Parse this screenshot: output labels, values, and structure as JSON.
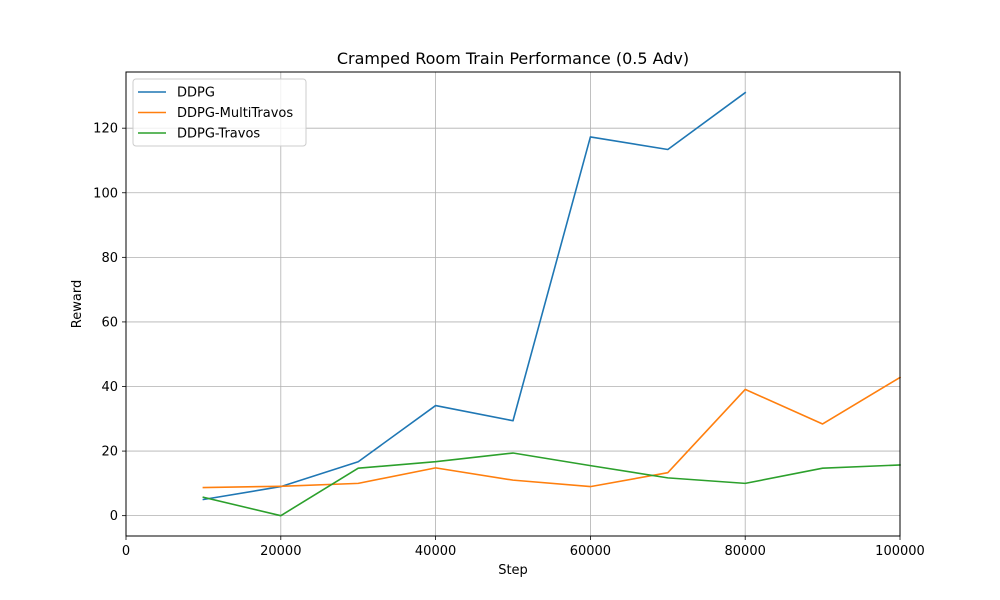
{
  "chart_data": {
    "type": "line",
    "title": "Cramped Room Train Performance (0.5 Adv)",
    "xlabel": "Step",
    "ylabel": "Reward",
    "xlim": [
      0,
      100000
    ],
    "ylim": [
      -6.3,
      137.4
    ],
    "xticks": [
      0,
      20000,
      40000,
      60000,
      80000,
      100000
    ],
    "yticks": [
      0,
      20,
      40,
      60,
      80,
      100,
      120
    ],
    "grid": true,
    "legend_position": "top-left",
    "series": [
      {
        "name": "DDPG",
        "color": "#1f77b4",
        "x": [
          10000,
          20000,
          30000,
          40000,
          50000,
          60000,
          70000,
          80000
        ],
        "y": [
          5.0,
          9.0,
          16.7,
          34.1,
          29.4,
          117.3,
          113.4,
          131.0
        ]
      },
      {
        "name": "DDPG-MultiTravos",
        "color": "#ff7f0e",
        "x": [
          10000,
          20000,
          30000,
          40000,
          50000,
          60000,
          70000,
          80000,
          90000,
          100000
        ],
        "y": [
          8.7,
          9.1,
          10.0,
          14.8,
          11.0,
          9.0,
          13.3,
          39.1,
          28.4,
          42.8
        ]
      },
      {
        "name": "DDPG-Travos",
        "color": "#2ca02c",
        "x": [
          10000,
          20000,
          30000,
          40000,
          50000,
          60000,
          70000,
          80000,
          90000,
          100000
        ],
        "y": [
          5.7,
          0.0,
          14.7,
          16.7,
          19.4,
          15.5,
          11.7,
          10.0,
          14.7,
          15.7
        ]
      }
    ]
  }
}
